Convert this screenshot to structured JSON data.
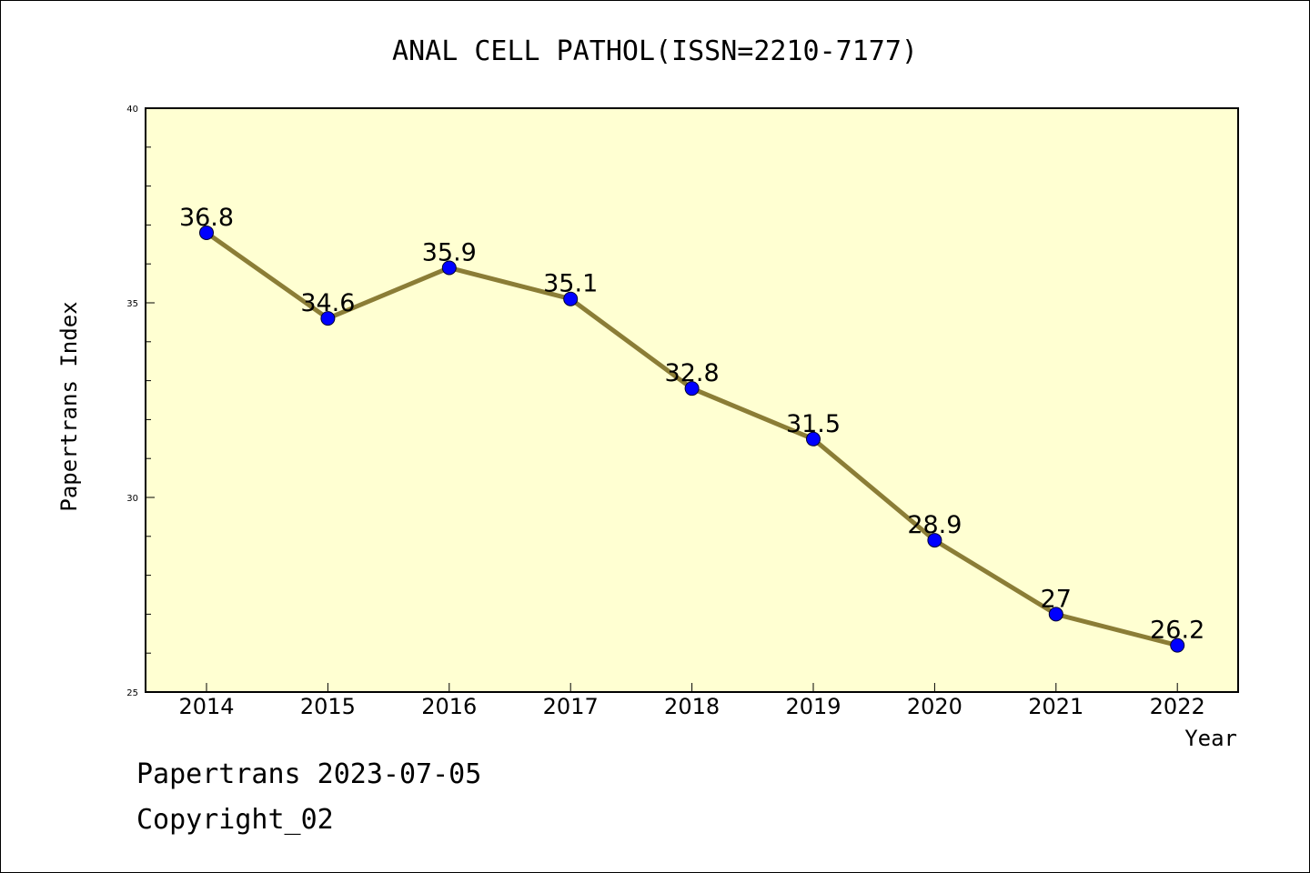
{
  "chart_data": {
    "type": "line",
    "title": "ANAL CELL PATHOL(ISSN=2210-7177)",
    "xlabel": "Year",
    "ylabel": "Papertrans Index",
    "categories": [
      "2014",
      "2015",
      "2016",
      "2017",
      "2018",
      "2019",
      "2020",
      "2021",
      "2022"
    ],
    "series": [
      {
        "values": [
          36.8,
          34.6,
          35.9,
          35.1,
          32.8,
          31.5,
          28.9,
          27,
          26.2
        ],
        "value_labels": [
          "36.8",
          "34.6",
          "35.9",
          "35.1",
          "32.8",
          "31.5",
          "28.9",
          "27",
          "26.2"
        ]
      }
    ],
    "ylim": [
      25,
      40
    ],
    "yticks": [
      "25",
      "30",
      "35",
      "40"
    ],
    "colors": {
      "plot_background": "#ffffd2",
      "line": "#8b7d36",
      "marker": "#0000ff"
    },
    "grid": false
  },
  "footer": {
    "line1": "Papertrans 2023-07-05",
    "line2": "Copyright_02"
  }
}
